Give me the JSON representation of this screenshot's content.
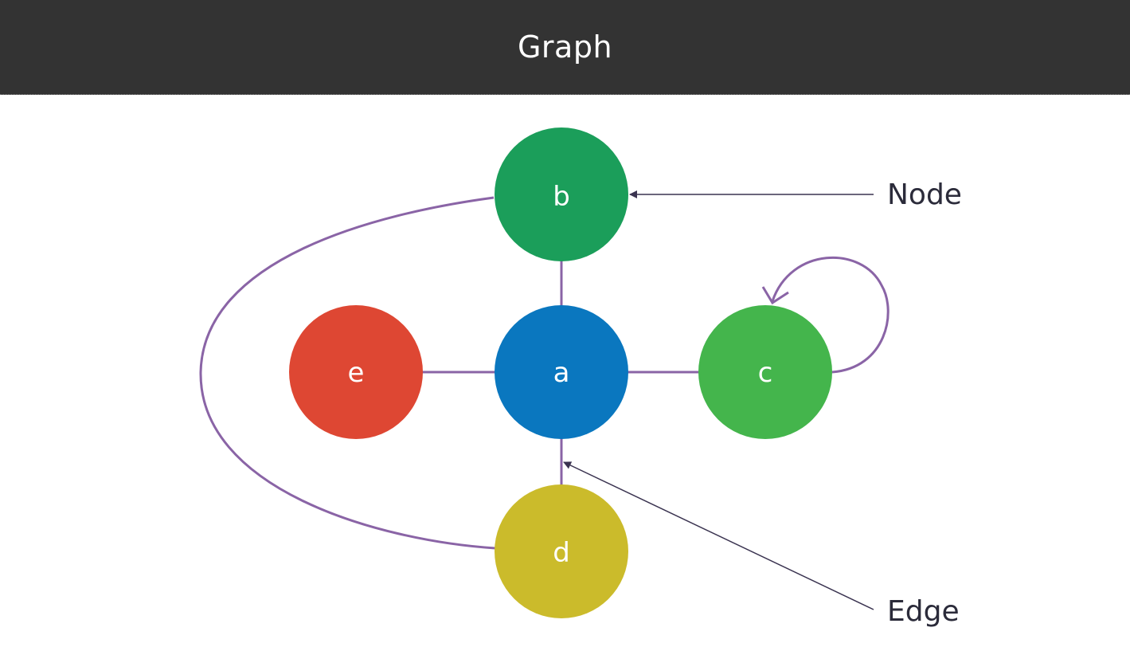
{
  "header": {
    "title": "Graph",
    "background": "#333333"
  },
  "diagram": {
    "edge_color": "#8a64a6",
    "pointer_color": "#3a3350",
    "nodes": [
      {
        "id": "a",
        "label": "a",
        "color": "#0a77bf"
      },
      {
        "id": "b",
        "label": "b",
        "color": "#1b9e5a"
      },
      {
        "id": "c",
        "label": "c",
        "color": "#44b54c"
      },
      {
        "id": "d",
        "label": "d",
        "color": "#cbbb2b"
      },
      {
        "id": "e",
        "label": "e",
        "color": "#de4733"
      }
    ],
    "edges": [
      {
        "from": "a",
        "to": "b"
      },
      {
        "from": "a",
        "to": "c"
      },
      {
        "from": "a",
        "to": "d"
      },
      {
        "from": "a",
        "to": "e"
      },
      {
        "from": "b",
        "to": "d"
      },
      {
        "from": "c",
        "to": "c",
        "directed": true
      }
    ],
    "annotations": {
      "node_label": "Node",
      "edge_label": "Edge"
    }
  }
}
